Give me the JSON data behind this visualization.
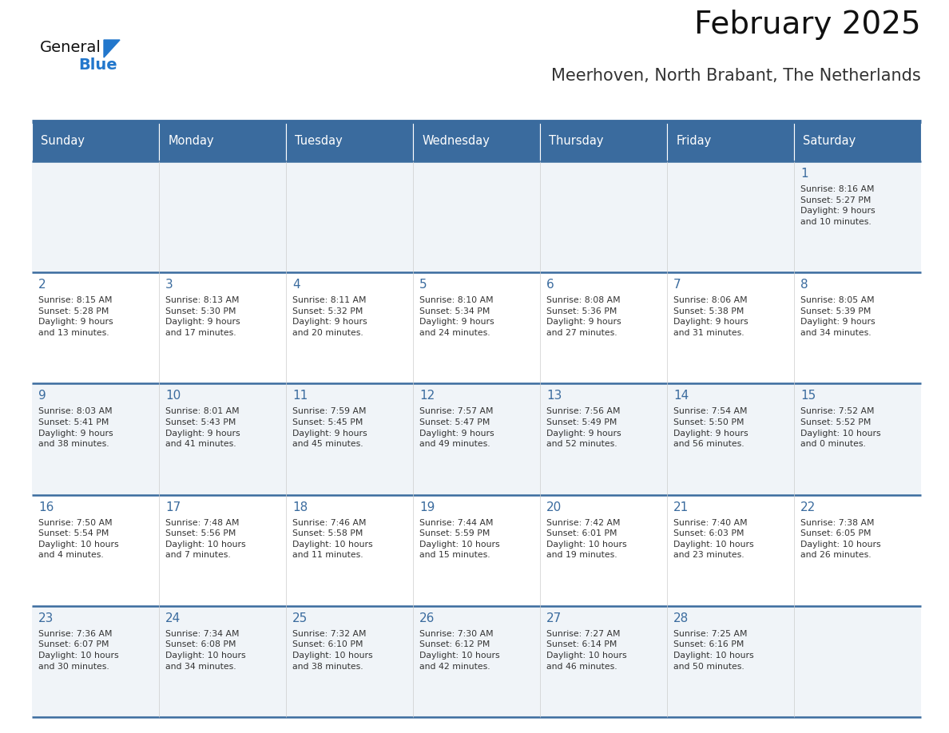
{
  "title": "February 2025",
  "subtitle": "Meerhoven, North Brabant, The Netherlands",
  "days_of_week": [
    "Sunday",
    "Monday",
    "Tuesday",
    "Wednesday",
    "Thursday",
    "Friday",
    "Saturday"
  ],
  "header_bg": "#3a6b9e",
  "header_text": "#ffffff",
  "row_bg_light": "#f0f4f8",
  "row_bg_white": "#ffffff",
  "cell_border_color": "#3a6b9e",
  "row_separator_color": "#3a6b9e",
  "day_number_color": "#3a6b9e",
  "info_text_color": "#333333",
  "title_color": "#111111",
  "subtitle_color": "#333333",
  "logo_general_color": "#111111",
  "logo_blue_color": "#2277cc",
  "logo_triangle_color": "#2277cc",
  "calendar_data": [
    [
      {
        "day": "",
        "info": ""
      },
      {
        "day": "",
        "info": ""
      },
      {
        "day": "",
        "info": ""
      },
      {
        "day": "",
        "info": ""
      },
      {
        "day": "",
        "info": ""
      },
      {
        "day": "",
        "info": ""
      },
      {
        "day": "1",
        "info": "Sunrise: 8:16 AM\nSunset: 5:27 PM\nDaylight: 9 hours\nand 10 minutes."
      }
    ],
    [
      {
        "day": "2",
        "info": "Sunrise: 8:15 AM\nSunset: 5:28 PM\nDaylight: 9 hours\nand 13 minutes."
      },
      {
        "day": "3",
        "info": "Sunrise: 8:13 AM\nSunset: 5:30 PM\nDaylight: 9 hours\nand 17 minutes."
      },
      {
        "day": "4",
        "info": "Sunrise: 8:11 AM\nSunset: 5:32 PM\nDaylight: 9 hours\nand 20 minutes."
      },
      {
        "day": "5",
        "info": "Sunrise: 8:10 AM\nSunset: 5:34 PM\nDaylight: 9 hours\nand 24 minutes."
      },
      {
        "day": "6",
        "info": "Sunrise: 8:08 AM\nSunset: 5:36 PM\nDaylight: 9 hours\nand 27 minutes."
      },
      {
        "day": "7",
        "info": "Sunrise: 8:06 AM\nSunset: 5:38 PM\nDaylight: 9 hours\nand 31 minutes."
      },
      {
        "day": "8",
        "info": "Sunrise: 8:05 AM\nSunset: 5:39 PM\nDaylight: 9 hours\nand 34 minutes."
      }
    ],
    [
      {
        "day": "9",
        "info": "Sunrise: 8:03 AM\nSunset: 5:41 PM\nDaylight: 9 hours\nand 38 minutes."
      },
      {
        "day": "10",
        "info": "Sunrise: 8:01 AM\nSunset: 5:43 PM\nDaylight: 9 hours\nand 41 minutes."
      },
      {
        "day": "11",
        "info": "Sunrise: 7:59 AM\nSunset: 5:45 PM\nDaylight: 9 hours\nand 45 minutes."
      },
      {
        "day": "12",
        "info": "Sunrise: 7:57 AM\nSunset: 5:47 PM\nDaylight: 9 hours\nand 49 minutes."
      },
      {
        "day": "13",
        "info": "Sunrise: 7:56 AM\nSunset: 5:49 PM\nDaylight: 9 hours\nand 52 minutes."
      },
      {
        "day": "14",
        "info": "Sunrise: 7:54 AM\nSunset: 5:50 PM\nDaylight: 9 hours\nand 56 minutes."
      },
      {
        "day": "15",
        "info": "Sunrise: 7:52 AM\nSunset: 5:52 PM\nDaylight: 10 hours\nand 0 minutes."
      }
    ],
    [
      {
        "day": "16",
        "info": "Sunrise: 7:50 AM\nSunset: 5:54 PM\nDaylight: 10 hours\nand 4 minutes."
      },
      {
        "day": "17",
        "info": "Sunrise: 7:48 AM\nSunset: 5:56 PM\nDaylight: 10 hours\nand 7 minutes."
      },
      {
        "day": "18",
        "info": "Sunrise: 7:46 AM\nSunset: 5:58 PM\nDaylight: 10 hours\nand 11 minutes."
      },
      {
        "day": "19",
        "info": "Sunrise: 7:44 AM\nSunset: 5:59 PM\nDaylight: 10 hours\nand 15 minutes."
      },
      {
        "day": "20",
        "info": "Sunrise: 7:42 AM\nSunset: 6:01 PM\nDaylight: 10 hours\nand 19 minutes."
      },
      {
        "day": "21",
        "info": "Sunrise: 7:40 AM\nSunset: 6:03 PM\nDaylight: 10 hours\nand 23 minutes."
      },
      {
        "day": "22",
        "info": "Sunrise: 7:38 AM\nSunset: 6:05 PM\nDaylight: 10 hours\nand 26 minutes."
      }
    ],
    [
      {
        "day": "23",
        "info": "Sunrise: 7:36 AM\nSunset: 6:07 PM\nDaylight: 10 hours\nand 30 minutes."
      },
      {
        "day": "24",
        "info": "Sunrise: 7:34 AM\nSunset: 6:08 PM\nDaylight: 10 hours\nand 34 minutes."
      },
      {
        "day": "25",
        "info": "Sunrise: 7:32 AM\nSunset: 6:10 PM\nDaylight: 10 hours\nand 38 minutes."
      },
      {
        "day": "26",
        "info": "Sunrise: 7:30 AM\nSunset: 6:12 PM\nDaylight: 10 hours\nand 42 minutes."
      },
      {
        "day": "27",
        "info": "Sunrise: 7:27 AM\nSunset: 6:14 PM\nDaylight: 10 hours\nand 46 minutes."
      },
      {
        "day": "28",
        "info": "Sunrise: 7:25 AM\nSunset: 6:16 PM\nDaylight: 10 hours\nand 50 minutes."
      },
      {
        "day": "",
        "info": ""
      }
    ]
  ]
}
